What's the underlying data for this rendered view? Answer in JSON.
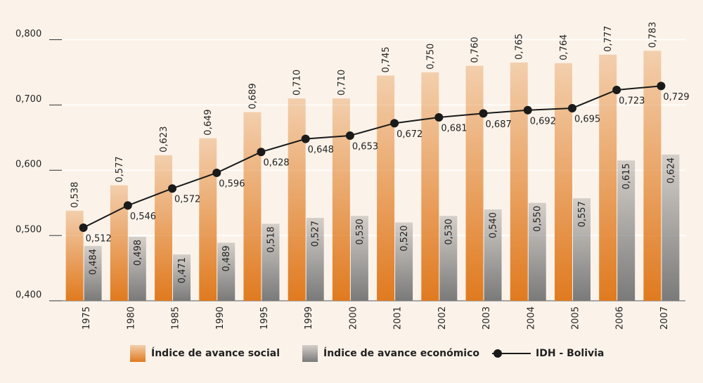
{
  "chart_data": {
    "type": "bar_line",
    "categories": [
      "1975",
      "1980",
      "1985",
      "1990",
      "1995",
      "1999",
      "2000",
      "2001",
      "2002",
      "2003",
      "2004",
      "2005",
      "2006",
      "2007"
    ],
    "series": [
      {
        "name": "Índice de avance social",
        "color": "#e07a1f",
        "type": "bar",
        "values": [
          0.538,
          0.577,
          0.623,
          0.649,
          0.689,
          0.71,
          0.71,
          0.745,
          0.75,
          0.76,
          0.765,
          0.764,
          0.777,
          0.783
        ],
        "value_labels": [
          "0,538",
          "0,577",
          "0,623",
          "0,649",
          "0,689",
          "0,710",
          "0,710",
          "0,745",
          "0,750",
          "0,760",
          "0,765",
          "0,764",
          "0,777",
          "0,783"
        ]
      },
      {
        "name": "Índice de avance económico",
        "color": "#7a7a7a",
        "type": "bar",
        "values": [
          0.484,
          0.498,
          0.471,
          0.489,
          0.518,
          0.527,
          0.53,
          0.52,
          0.53,
          0.54,
          0.55,
          0.557,
          0.615,
          0.624
        ],
        "value_labels": [
          "0,484",
          "0,498",
          "0,471",
          "0,489",
          "0,518",
          "0,527",
          "0,530",
          "0,520",
          "0,530",
          "0,540",
          "0,550",
          "0,557",
          "0,615",
          "0,624"
        ]
      },
      {
        "name": "IDH - Bolivia",
        "color": "#1a1a1a",
        "type": "line",
        "values": [
          0.512,
          0.546,
          0.572,
          0.596,
          0.628,
          0.648,
          0.653,
          0.672,
          0.681,
          0.687,
          0.692,
          0.695,
          0.723,
          0.729
        ],
        "value_labels": [
          "0,512",
          "0,546",
          "0,572",
          "0,596",
          "0,628",
          "0,648",
          "0,653",
          "0,672",
          "0,681",
          "0,687",
          "0,692",
          "0,695",
          "0,723",
          "0,729"
        ]
      }
    ],
    "ylim": [
      0.4,
      0.85
    ],
    "yticks": [
      {
        "value": 0.4,
        "label": "0,400"
      },
      {
        "value": 0.5,
        "label": "0,500"
      },
      {
        "value": 0.6,
        "label": "0,600"
      },
      {
        "value": 0.7,
        "label": "0,700"
      },
      {
        "value": 0.8,
        "label": "0,800"
      }
    ],
    "grid": true,
    "legend": "bottom"
  }
}
